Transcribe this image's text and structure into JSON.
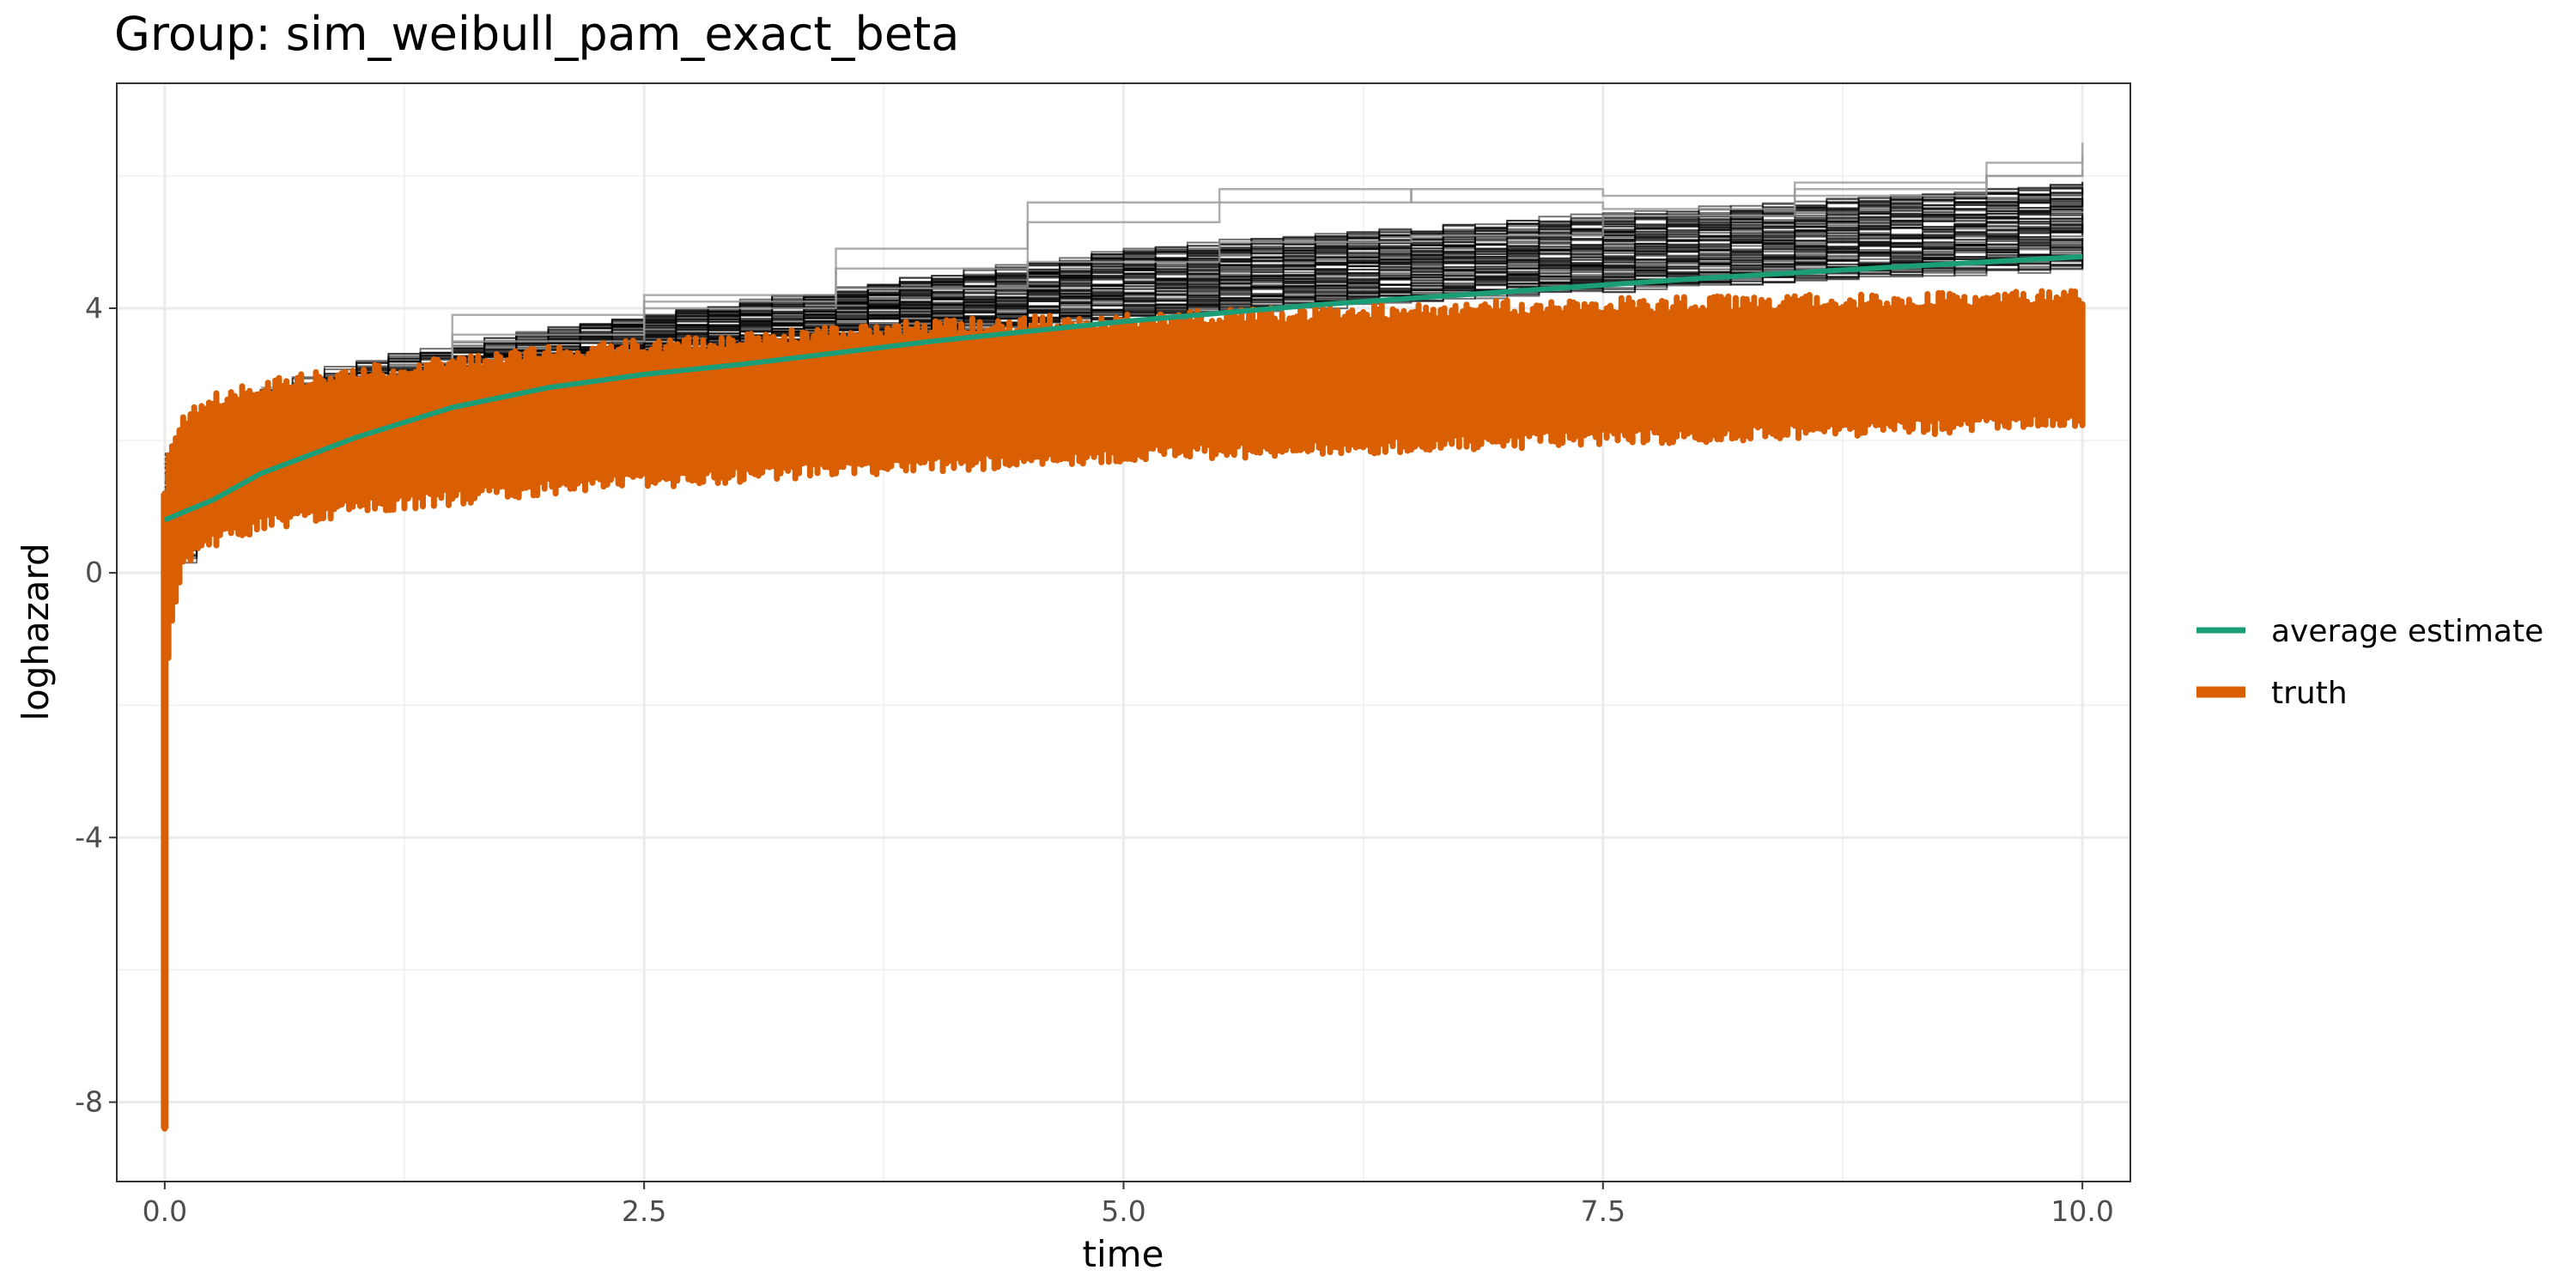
{
  "chart_data": {
    "type": "line",
    "title": "Group: sim_weibull_pam_exact_beta",
    "xlabel": "time",
    "ylabel": "loghazard",
    "xlim": [
      -0.25,
      10.25
    ],
    "ylim": [
      -9.2,
      7.4
    ],
    "grid": true,
    "legend_position": "right",
    "x_ticks": [
      {
        "value": 0.0,
        "label": "0.0"
      },
      {
        "value": 2.5,
        "label": "2.5"
      },
      {
        "value": 5.0,
        "label": "5.0"
      },
      {
        "value": 7.5,
        "label": "7.5"
      },
      {
        "value": 10.0,
        "label": "10.0"
      }
    ],
    "y_ticks": [
      {
        "value": -8,
        "label": "-8"
      },
      {
        "value": -4,
        "label": "-4"
      },
      {
        "value": 0,
        "label": "0"
      },
      {
        "value": 4,
        "label": "4"
      }
    ],
    "series": [
      {
        "name": "average estimate",
        "color": "#1b9e77",
        "x": [
          0.0,
          0.25,
          0.5,
          1.0,
          1.5,
          2.0,
          2.5,
          3.0,
          4.0,
          5.0,
          6.0,
          7.0,
          8.0,
          9.0,
          10.0
        ],
        "values": [
          0.8,
          1.1,
          1.5,
          2.05,
          2.5,
          2.8,
          3.0,
          3.15,
          3.5,
          3.8,
          4.05,
          4.25,
          4.45,
          4.62,
          4.78
        ]
      },
      {
        "name": "truth",
        "color": "#d95f02",
        "x": [
          0.0,
          0.02,
          0.1,
          0.25,
          0.5,
          1.0,
          2.0,
          3.0,
          4.0,
          5.0,
          6.0,
          7.0,
          8.0,
          9.0,
          10.0
        ],
        "band_low": [
          -8.4,
          -1.0,
          0.2,
          0.5,
          0.75,
          1.0,
          1.3,
          1.5,
          1.65,
          1.8,
          1.9,
          2.0,
          2.1,
          2.2,
          2.3
        ],
        "band_high": [
          1.2,
          1.8,
          2.3,
          2.6,
          2.8,
          3.0,
          3.3,
          3.5,
          3.7,
          3.8,
          3.9,
          4.0,
          4.05,
          4.1,
          4.15
        ]
      }
    ],
    "estimate_runs": {
      "color": "#000000",
      "x": [
        0.0,
        0.1,
        0.5,
        1.0,
        2.0,
        3.0,
        4.0,
        5.0,
        6.0,
        7.0,
        8.0,
        9.0,
        10.0
      ],
      "band_low": [
        0.2,
        0.6,
        1.4,
        2.1,
        2.9,
        3.3,
        3.6,
        3.85,
        4.05,
        4.2,
        4.35,
        4.5,
        4.6
      ],
      "band_high": [
        1.8,
        2.2,
        2.8,
        3.2,
        3.7,
        4.1,
        4.5,
        4.9,
        5.1,
        5.3,
        5.5,
        5.7,
        5.9
      ],
      "outliers": [
        {
          "x": [
            0.5,
            1.5,
            2.5,
            3.5,
            4.5,
            5.5,
            6.5,
            7.5,
            8.5,
            9.5,
            10.0
          ],
          "values": [
            2.8,
            3.9,
            4.2,
            4.9,
            5.6,
            5.8,
            5.6,
            5.5,
            5.7,
            6.0,
            6.1
          ]
        },
        {
          "x": [
            0.5,
            1.5,
            2.5,
            3.5,
            4.5,
            5.5,
            6.5,
            7.5,
            8.5,
            9.5,
            10.0
          ],
          "values": [
            2.7,
            3.6,
            4.1,
            4.6,
            5.3,
            5.6,
            5.8,
            5.7,
            5.9,
            6.2,
            6.5
          ]
        },
        {
          "x": [
            0.5,
            1.5,
            2.5,
            3.5,
            4.5,
            5.5,
            6.5,
            7.5,
            8.5,
            9.5,
            10.0
          ],
          "values": [
            2.6,
            3.5,
            4.0,
            4.3,
            4.7,
            5.0,
            5.1,
            5.4,
            5.8,
            6.0,
            6.3
          ]
        }
      ]
    }
  }
}
